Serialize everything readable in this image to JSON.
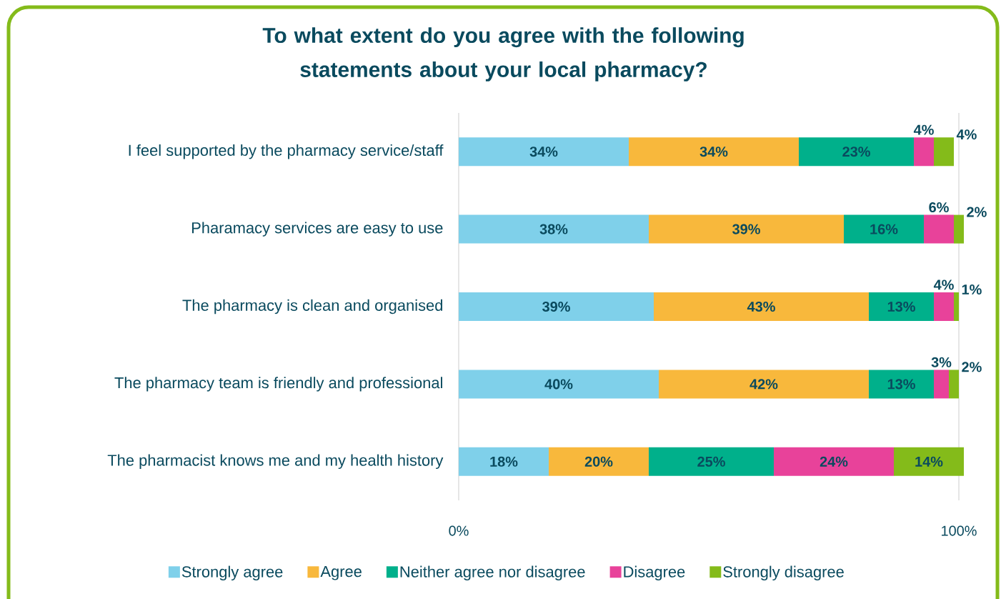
{
  "chart_data": {
    "type": "bar",
    "title": "To what extent do you agree with the following statements about your local pharmacy?",
    "orientation": "horizontal",
    "stacked": true,
    "categories": [
      "I feel supported by the pharmacy service/staff",
      "Pharamacy services are easy to use",
      "The pharmacy is clean and organised",
      "The pharmacy team is friendly and professional",
      "The pharmacist knows me and my health history"
    ],
    "series": [
      {
        "name": "Strongly agree",
        "color": "#7fd0ea",
        "values": [
          34,
          38,
          39,
          40,
          18
        ],
        "value_labels": [
          "34%",
          "38%",
          "39%",
          "40%",
          "18%"
        ]
      },
      {
        "name": "Agree",
        "color": "#f8b83c",
        "values": [
          34,
          39,
          43,
          42,
          20
        ],
        "value_labels": [
          "34%",
          "39%",
          "43%",
          "42%",
          "20%"
        ]
      },
      {
        "name": "Neither agree nor disagree",
        "color": "#00b08b",
        "values": [
          23,
          16,
          13,
          13,
          25
        ],
        "value_labels": [
          "23%",
          "16%",
          "13%",
          "13%",
          "25%"
        ]
      },
      {
        "name": "Disagree",
        "color": "#e8429a",
        "values": [
          4,
          6,
          4,
          3,
          24
        ],
        "value_labels": [
          "4%",
          "6%",
          "4%",
          "3%",
          "24%"
        ]
      },
      {
        "name": "Strongly disagree",
        "color": "#84bb1a",
        "values": [
          4,
          2,
          1,
          2,
          14
        ],
        "value_labels": [
          "4%",
          "2%",
          "1%",
          "2%",
          "14%"
        ]
      }
    ],
    "xlim": [
      0,
      101
    ],
    "xticks": [
      {
        "value": 0,
        "label": "0%"
      },
      {
        "value": 100,
        "label": "100%"
      }
    ],
    "grid": "x",
    "legend": "bottom"
  }
}
